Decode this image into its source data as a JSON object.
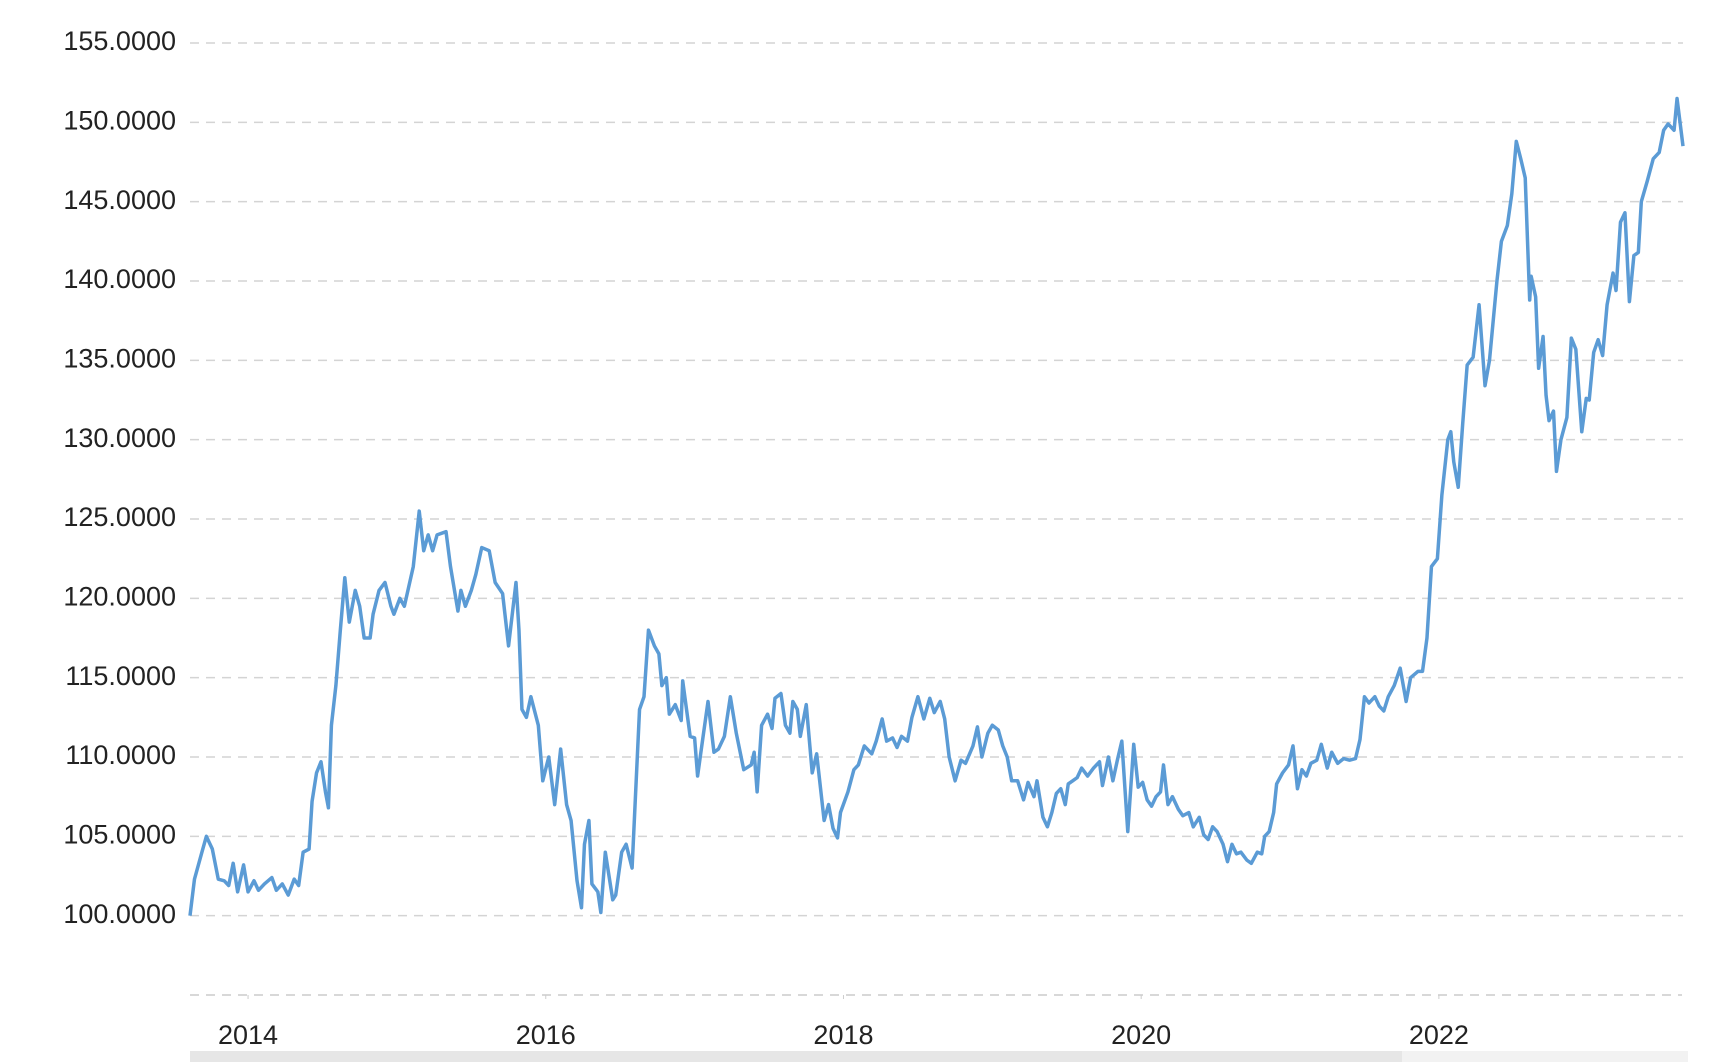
{
  "chart_data": {
    "type": "line",
    "x": [
      2013.61,
      2013.64,
      2013.69,
      2013.72,
      2013.76,
      2013.8,
      2013.84,
      2013.87,
      2013.9,
      2013.93,
      2013.97,
      2014.0,
      2014.04,
      2014.07,
      2014.11,
      2014.16,
      2014.19,
      2014.23,
      2014.27,
      2014.31,
      2014.34,
      2014.37,
      2014.41,
      2014.43,
      2014.46,
      2014.49,
      2014.52,
      2014.54,
      2014.56,
      2014.59,
      2014.62,
      2014.65,
      2014.68,
      2014.72,
      2014.75,
      2014.78,
      2014.82,
      2014.84,
      2014.88,
      2014.92,
      2014.96,
      2014.98,
      2015.02,
      2015.05,
      2015.11,
      2015.15,
      2015.18,
      2015.21,
      2015.24,
      2015.27,
      2015.33,
      2015.36,
      2015.41,
      2015.43,
      2015.46,
      2015.5,
      2015.53,
      2015.57,
      2015.62,
      2015.66,
      2015.71,
      2015.75,
      2015.8,
      2015.82,
      2015.84,
      2015.87,
      2015.9,
      2015.95,
      2015.98,
      2016.02,
      2016.06,
      2016.1,
      2016.14,
      2016.17,
      2016.21,
      2016.24,
      2016.26,
      2016.29,
      2016.31,
      2016.35,
      2016.37,
      2016.4,
      2016.45,
      2016.47,
      2016.51,
      2016.54,
      2016.58,
      2016.6,
      2016.63,
      2016.66,
      2016.69,
      2016.73,
      2016.76,
      2016.78,
      2016.81,
      2016.83,
      2016.87,
      2016.91,
      2016.92,
      2016.97,
      2017.0,
      2017.02,
      2017.06,
      2017.09,
      2017.13,
      2017.16,
      2017.2,
      2017.24,
      2017.28,
      2017.33,
      2017.38,
      2017.4,
      2017.42,
      2017.45,
      2017.49,
      2017.52,
      2017.54,
      2017.58,
      2017.61,
      2017.64,
      2017.66,
      2017.69,
      2017.71,
      2017.75,
      2017.79,
      2017.82,
      2017.87,
      2017.9,
      2017.93,
      2017.96,
      2017.98,
      2018.03,
      2018.07,
      2018.1,
      2018.14,
      2018.19,
      2018.22,
      2018.26,
      2018.29,
      2018.33,
      2018.36,
      2018.39,
      2018.43,
      2018.46,
      2018.5,
      2018.54,
      2018.58,
      2018.61,
      2018.65,
      2018.68,
      2018.71,
      2018.75,
      2018.79,
      2018.82,
      2018.87,
      2018.9,
      2018.93,
      2018.97,
      2019.0,
      2019.04,
      2019.07,
      2019.1,
      2019.13,
      2019.17,
      2019.21,
      2019.24,
      2019.28,
      2019.3,
      2019.34,
      2019.37,
      2019.4,
      2019.43,
      2019.46,
      2019.49,
      2019.51,
      2019.54,
      2019.57,
      2019.6,
      2019.64,
      2019.68,
      2019.72,
      2019.74,
      2019.78,
      2019.81,
      2019.84,
      2019.87,
      2019.91,
      2019.95,
      2019.98,
      2020.01,
      2020.04,
      2020.07,
      2020.1,
      2020.13,
      2020.15,
      2020.18,
      2020.21,
      2020.25,
      2020.28,
      2020.32,
      2020.35,
      2020.39,
      2020.42,
      2020.45,
      2020.48,
      2020.51,
      2020.55,
      2020.58,
      2020.61,
      2020.64,
      2020.67,
      2020.71,
      2020.74,
      2020.78,
      2020.81,
      2020.83,
      2020.86,
      2020.89,
      2020.91,
      2020.95,
      2020.99,
      2021.02,
      2021.05,
      2021.08,
      2021.11,
      2021.14,
      2021.18,
      2021.21,
      2021.25,
      2021.28,
      2021.32,
      2021.36,
      2021.4,
      2021.44,
      2021.47,
      2021.5,
      2021.53,
      2021.57,
      2021.6,
      2021.63,
      2021.66,
      2021.7,
      2021.74,
      2021.78,
      2021.81,
      2021.86,
      2021.89,
      2021.92,
      2021.95,
      2021.99,
      2022.02,
      2022.06,
      2022.08,
      2022.1,
      2022.13,
      2022.16,
      2022.19,
      2022.23,
      2022.27,
      2022.31,
      2022.34,
      2022.36,
      2022.39,
      2022.42,
      2022.46,
      2022.49,
      2022.52,
      2022.55,
      2022.58,
      2022.61,
      2022.62,
      2022.65,
      2022.67,
      2022.7,
      2022.72,
      2022.74,
      2022.77,
      2022.79,
      2022.82,
      2022.86,
      2022.89,
      2022.92,
      2022.96,
      2022.99,
      2023.01,
      2023.04,
      2023.07,
      2023.1,
      2023.13,
      2023.17,
      2023.19,
      2023.22,
      2023.25,
      2023.28,
      2023.31,
      2023.34,
      2023.36,
      2023.4,
      2023.44,
      2023.48,
      2023.51,
      2023.54,
      2023.58,
      2023.6,
      2023.64
    ],
    "values": [
      100,
      102.3,
      104,
      105,
      104.2,
      102.3,
      102.2,
      101.9,
      103.3,
      101.5,
      103.2,
      101.5,
      102.2,
      101.6,
      102,
      102.4,
      101.6,
      102,
      101.3,
      102.3,
      101.9,
      104,
      104.2,
      107.2,
      109,
      109.7,
      107.8,
      106.8,
      112,
      114.5,
      118,
      121.3,
      118.5,
      120.5,
      119.5,
      117.5,
      117.5,
      119,
      120.5,
      121,
      119.5,
      119,
      120,
      119.5,
      122,
      125.5,
      123,
      124,
      123,
      124,
      124.2,
      122,
      119.2,
      120.5,
      119.5,
      120.5,
      121.5,
      123.2,
      123,
      121,
      120.3,
      117,
      121,
      118,
      113,
      112.5,
      113.8,
      112,
      108.5,
      110,
      107,
      110.5,
      107,
      106,
      102.2,
      100.5,
      104.5,
      106,
      102,
      101.5,
      100.2,
      104,
      101,
      101.3,
      104,
      104.5,
      103,
      107,
      113,
      113.8,
      118,
      117,
      116.5,
      114.5,
      115,
      112.7,
      113.3,
      112.3,
      114.8,
      111.3,
      111.2,
      108.8,
      111.5,
      113.5,
      110.3,
      110.5,
      111.3,
      113.8,
      111.5,
      109.2,
      109.5,
      110.3,
      107.8,
      112,
      112.7,
      111.8,
      113.7,
      114,
      112,
      111.5,
      113.5,
      113,
      111.3,
      113.3,
      109,
      110.2,
      106,
      107,
      105.5,
      104.9,
      106.5,
      107.8,
      109.2,
      109.5,
      110.7,
      110.2,
      111,
      112.4,
      111,
      111.2,
      110.6,
      111.3,
      111,
      112.5,
      113.8,
      112.4,
      113.7,
      112.8,
      113.5,
      112.4,
      110,
      108.5,
      109.8,
      109.6,
      110.7,
      111.9,
      110,
      111.5,
      112,
      111.7,
      110.7,
      110,
      108.5,
      108.5,
      107.3,
      108.4,
      107.5,
      108.5,
      106.2,
      105.6,
      106.5,
      107.7,
      108,
      107,
      108.3,
      108.5,
      108.7,
      109.3,
      108.8,
      109.3,
      109.7,
      108.2,
      110,
      108.5,
      109.8,
      111,
      105.3,
      110.8,
      108.1,
      108.4,
      107.3,
      106.9,
      107.5,
      107.8,
      109.5,
      107,
      107.5,
      106.7,
      106.3,
      106.5,
      105.6,
      106.2,
      105.1,
      104.8,
      105.6,
      105.3,
      104.5,
      103.4,
      104.5,
      103.9,
      104,
      103.5,
      103.3,
      104,
      103.9,
      105,
      105.3,
      106.5,
      108.3,
      109,
      109.5,
      110.7,
      108,
      109.2,
      108.8,
      109.6,
      109.8,
      110.8,
      109.3,
      110.3,
      109.6,
      109.9,
      109.8,
      109.9,
      111.1,
      113.8,
      113.4,
      113.8,
      113.2,
      112.9,
      113.8,
      114.5,
      115.6,
      113.5,
      115,
      115.4,
      115.4,
      117.5,
      122,
      122.5,
      126.5,
      130,
      130.5,
      128.6,
      127,
      131,
      134.7,
      135.2,
      138.5,
      133.4,
      135,
      137,
      140,
      142.5,
      143.5,
      145.5,
      148.8,
      147.7,
      146.5,
      138.8,
      140.3,
      139,
      134.5,
      136.5,
      132.8,
      131.2,
      131.8,
      128,
      130,
      131.4,
      136.4,
      135.7,
      130.5,
      132.6,
      132.5,
      135.5,
      136.3,
      135.3,
      138.5,
      140.5,
      139.4,
      143.7,
      144.3,
      138.7,
      141.6,
      141.8,
      145,
      146.3,
      147.7,
      148.1,
      149.5,
      149.9,
      149.5,
      151.5,
      148.5
    ],
    "color": "#5b9bd5",
    "xlim": [
      2013.61,
      2023.64
    ],
    "xticks": [
      2014,
      2016,
      2018,
      2020,
      2022
    ],
    "ylim": [
      95,
      155
    ],
    "yticks": [
      {
        "value": 100,
        "label": "100.0000"
      },
      {
        "value": 105,
        "label": "105.0000"
      },
      {
        "value": 110,
        "label": "110.0000"
      },
      {
        "value": 115,
        "label": "115.0000"
      },
      {
        "value": 120,
        "label": "120.0000"
      },
      {
        "value": 125,
        "label": "125.0000"
      },
      {
        "value": 130,
        "label": "130.0000"
      },
      {
        "value": 135,
        "label": "135.0000"
      },
      {
        "value": 140,
        "label": "140.0000"
      },
      {
        "value": 145,
        "label": "145.0000"
      },
      {
        "value": 150,
        "label": "150.0000"
      },
      {
        "value": 155,
        "label": "155.0000"
      }
    ],
    "grid": true
  }
}
